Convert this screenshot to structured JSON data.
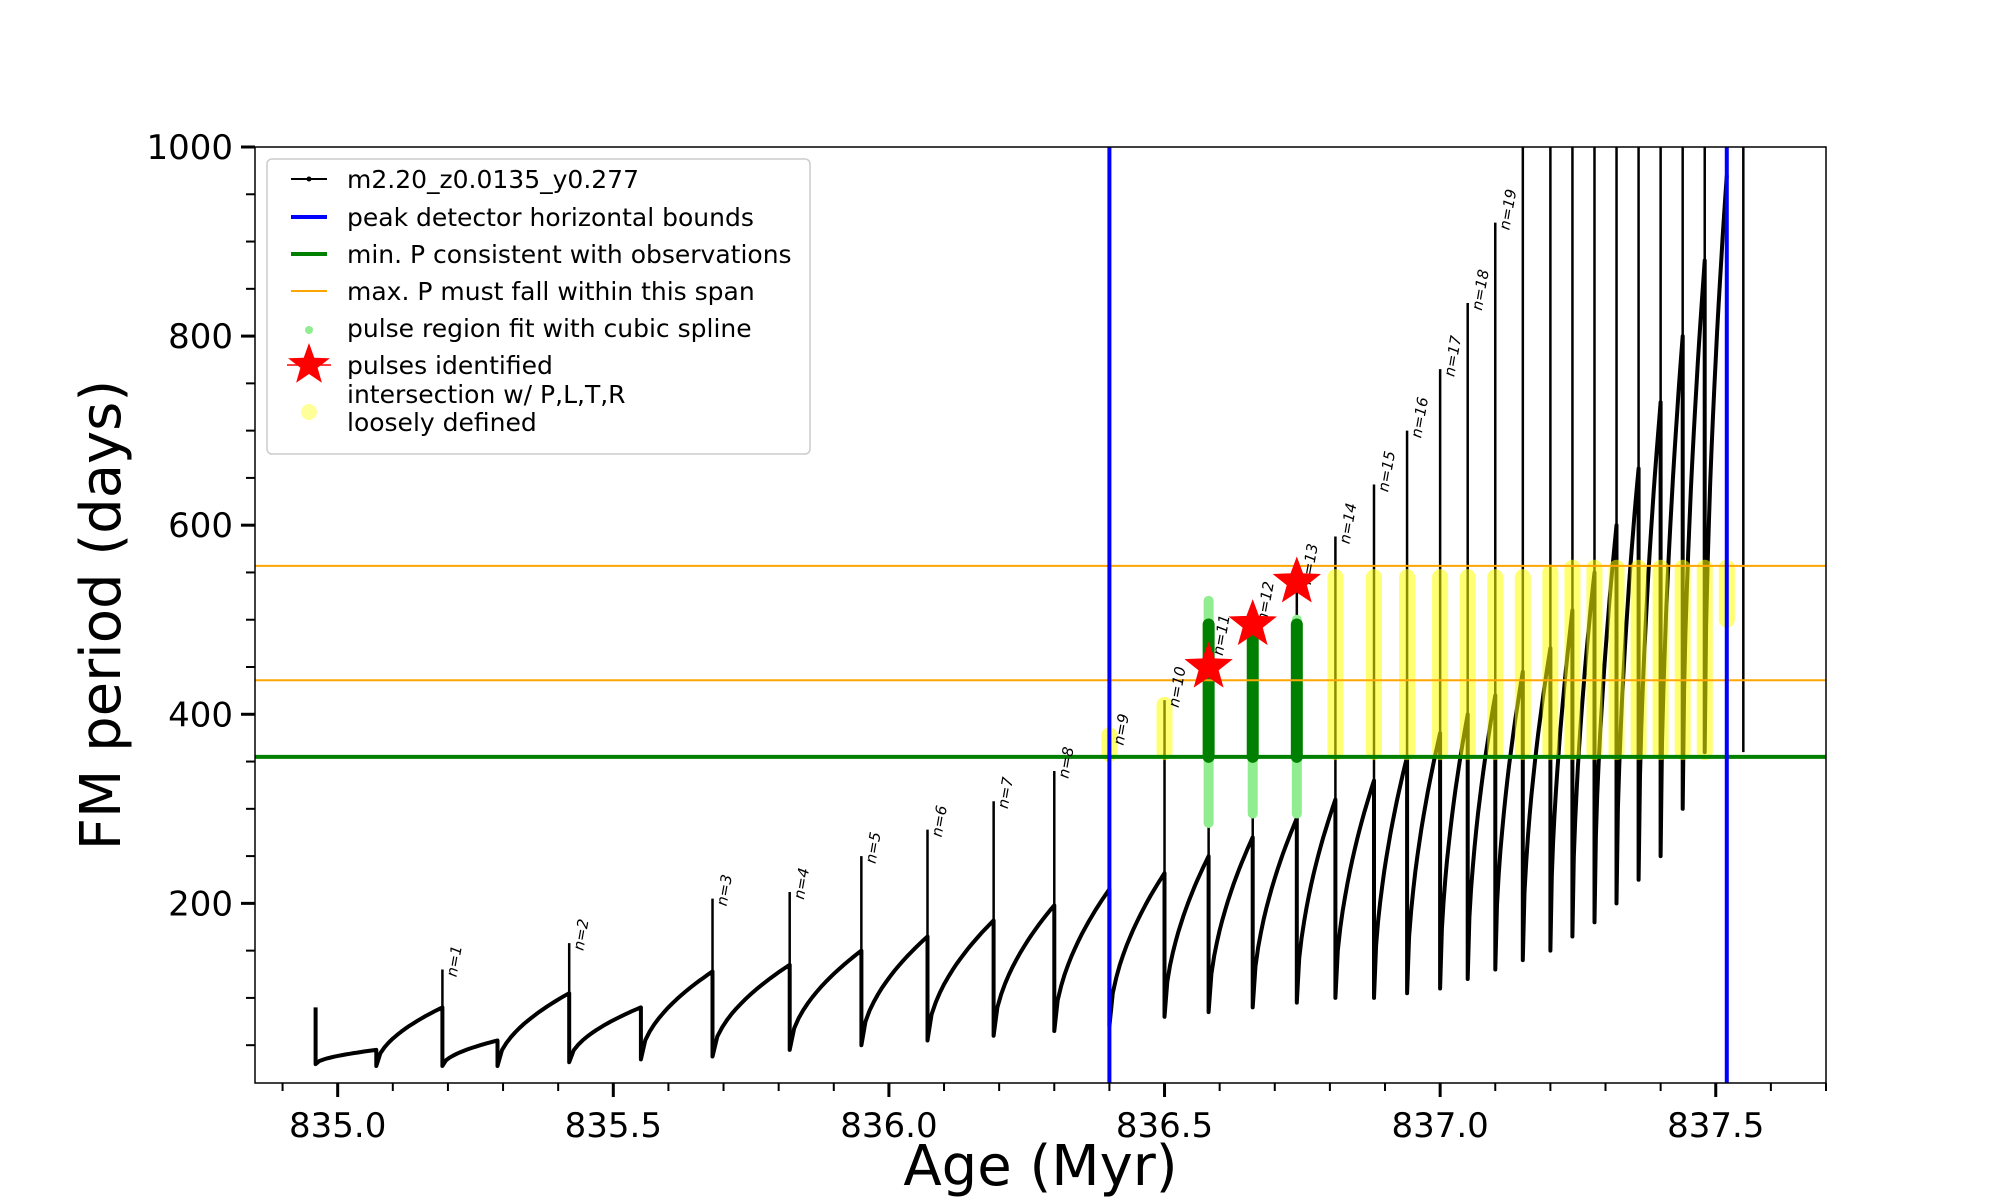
{
  "chart_data": {
    "type": "line",
    "title": "",
    "xlabel": "Age (Myr)",
    "ylabel": "FM period (days)",
    "xlim": [
      834.85,
      837.7
    ],
    "ylim": [
      10,
      1000
    ],
    "xticks": [
      835.0,
      835.5,
      836.0,
      836.5,
      837.0,
      837.5
    ],
    "xtick_labels": [
      "835.0",
      "835.5",
      "836.0",
      "836.5",
      "837.0",
      "837.5"
    ],
    "yticks": [
      200,
      400,
      600,
      800,
      1000
    ],
    "ytick_labels": [
      "200",
      "400",
      "600",
      "800",
      "1000"
    ],
    "grid": false,
    "legend_position": "top-left",
    "legend": [
      {
        "label": "m2.20_z0.0135_y0.277",
        "kind": "line-marker",
        "color": "#000000"
      },
      {
        "label": "peak detector horizontal bounds",
        "kind": "line",
        "color": "#0000ff"
      },
      {
        "label": "min. P consistent with observations",
        "kind": "line",
        "color": "#008000"
      },
      {
        "label": "max. P must fall within this span",
        "kind": "line",
        "color": "#ffa500"
      },
      {
        "label": "pulse region fit with cubic spline",
        "kind": "dot",
        "color": "#90ee90"
      },
      {
        "label": "pulses identified",
        "kind": "star",
        "color": "#ff0000"
      },
      {
        "label": "intersection w/ P,L,T,R",
        "label2": "loosely defined",
        "kind": "dot",
        "color": "#ffff99"
      }
    ],
    "vlines": [
      {
        "x": 836.4,
        "color": "#0000ff",
        "series": "peak detector horizontal bounds"
      },
      {
        "x": 837.52,
        "color": "#0000ff",
        "series": "peak detector horizontal bounds"
      }
    ],
    "hlines": [
      {
        "y": 355,
        "color": "#008000",
        "series": "min. P consistent with observations"
      },
      {
        "y": 436,
        "color": "#ffa500",
        "series": "max. P must fall within this span"
      },
      {
        "y": 557,
        "color": "#ffa500",
        "series": "max. P must fall within this span"
      }
    ],
    "track_start": {
      "x": 834.96,
      "y": 90
    },
    "track_segments": [
      {
        "x_start": 834.96,
        "x_end": 835.07,
        "y_start": 30,
        "y_end": 45
      },
      {
        "x_start": 835.07,
        "x_end": 835.19,
        "y_start": 28,
        "y_end": 90
      },
      {
        "x_start": 835.19,
        "x_end": 835.29,
        "y_start": 28,
        "y_end": 55
      },
      {
        "x_start": 835.29,
        "x_end": 835.42,
        "y_start": 28,
        "y_end": 105
      },
      {
        "x_start": 835.42,
        "x_end": 835.55,
        "y_start": 32,
        "y_end": 90
      },
      {
        "x_start": 835.55,
        "x_end": 835.68,
        "y_start": 35,
        "y_end": 128
      },
      {
        "x_start": 835.68,
        "x_end": 835.82,
        "y_start": 38,
        "y_end": 135
      },
      {
        "x_start": 835.82,
        "x_end": 835.95,
        "y_start": 45,
        "y_end": 150
      },
      {
        "x_start": 835.95,
        "x_end": 836.07,
        "y_start": 50,
        "y_end": 165
      },
      {
        "x_start": 836.07,
        "x_end": 836.19,
        "y_start": 55,
        "y_end": 182
      },
      {
        "x_start": 836.19,
        "x_end": 836.3,
        "y_start": 60,
        "y_end": 198
      },
      {
        "x_start": 836.3,
        "x_end": 836.4,
        "y_start": 65,
        "y_end": 215
      },
      {
        "x_start": 836.4,
        "x_end": 836.5,
        "y_start": 70,
        "y_end": 232
      },
      {
        "x_start": 836.5,
        "x_end": 836.58,
        "y_start": 80,
        "y_end": 250
      },
      {
        "x_start": 836.58,
        "x_end": 836.66,
        "y_start": 85,
        "y_end": 270
      },
      {
        "x_start": 836.66,
        "x_end": 836.74,
        "y_start": 90,
        "y_end": 290
      },
      {
        "x_start": 836.74,
        "x_end": 836.81,
        "y_start": 95,
        "y_end": 310
      },
      {
        "x_start": 836.81,
        "x_end": 836.88,
        "y_start": 100,
        "y_end": 330
      },
      {
        "x_start": 836.88,
        "x_end": 836.94,
        "y_start": 100,
        "y_end": 355
      },
      {
        "x_start": 836.94,
        "x_end": 837.0,
        "y_start": 105,
        "y_end": 380
      },
      {
        "x_start": 837.0,
        "x_end": 837.05,
        "y_start": 110,
        "y_end": 400
      },
      {
        "x_start": 837.05,
        "x_end": 837.1,
        "y_start": 120,
        "y_end": 420
      },
      {
        "x_start": 837.1,
        "x_end": 837.15,
        "y_start": 130,
        "y_end": 445
      },
      {
        "x_start": 837.15,
        "x_end": 837.2,
        "y_start": 140,
        "y_end": 470
      },
      {
        "x_start": 837.2,
        "x_end": 837.24,
        "y_start": 150,
        "y_end": 510
      },
      {
        "x_start": 837.24,
        "x_end": 837.28,
        "y_start": 165,
        "y_end": 550
      },
      {
        "x_start": 837.28,
        "x_end": 837.32,
        "y_start": 180,
        "y_end": 600
      },
      {
        "x_start": 837.32,
        "x_end": 837.36,
        "y_start": 200,
        "y_end": 660
      },
      {
        "x_start": 837.36,
        "x_end": 837.4,
        "y_start": 225,
        "y_end": 730
      },
      {
        "x_start": 837.4,
        "x_end": 837.44,
        "y_start": 250,
        "y_end": 800
      },
      {
        "x_start": 837.44,
        "x_end": 837.48,
        "y_start": 300,
        "y_end": 880
      },
      {
        "x_start": 837.48,
        "x_end": 837.52,
        "y_start": 360,
        "y_end": 970
      }
    ],
    "spikes": [
      {
        "x": 835.19,
        "y_top": 130,
        "label": "n=1"
      },
      {
        "x": 835.42,
        "y_top": 158,
        "label": "n=2"
      },
      {
        "x": 835.68,
        "y_top": 205,
        "label": "n=3"
      },
      {
        "x": 835.82,
        "y_top": 212,
        "label": "n=4"
      },
      {
        "x": 835.95,
        "y_top": 250,
        "label": "n=5"
      },
      {
        "x": 836.07,
        "y_top": 278,
        "label": "n=6"
      },
      {
        "x": 836.19,
        "y_top": 308,
        "label": "n=7"
      },
      {
        "x": 836.3,
        "y_top": 340,
        "label": "n=8"
      },
      {
        "x": 836.4,
        "y_top": 375,
        "label": "n=9"
      },
      {
        "x": 836.5,
        "y_top": 415,
        "label": "n=10"
      },
      {
        "x": 836.58,
        "y_top": 470,
        "label": "n=11"
      },
      {
        "x": 836.66,
        "y_top": 505,
        "label": "n=12"
      },
      {
        "x": 836.74,
        "y_top": 545,
        "label": "n=13"
      },
      {
        "x": 836.81,
        "y_top": 588,
        "label": "n=14"
      },
      {
        "x": 836.88,
        "y_top": 643,
        "label": "n=15"
      },
      {
        "x": 836.94,
        "y_top": 700,
        "label": "n=16"
      },
      {
        "x": 837.0,
        "y_top": 765,
        "label": "n=17"
      },
      {
        "x": 837.05,
        "y_top": 835,
        "label": "n=18"
      },
      {
        "x": 837.1,
        "y_top": 920,
        "label": "n=19"
      },
      {
        "x": 837.15,
        "y_top": 1000,
        "label": ""
      },
      {
        "x": 837.2,
        "y_top": 1000,
        "label": ""
      },
      {
        "x": 837.24,
        "y_top": 1000,
        "label": ""
      },
      {
        "x": 837.28,
        "y_top": 1000,
        "label": ""
      },
      {
        "x": 837.32,
        "y_top": 1000,
        "label": ""
      },
      {
        "x": 837.36,
        "y_top": 1000,
        "label": ""
      },
      {
        "x": 837.4,
        "y_top": 1000,
        "label": ""
      },
      {
        "x": 837.44,
        "y_top": 1000,
        "label": ""
      },
      {
        "x": 837.48,
        "y_top": 1000,
        "label": ""
      },
      {
        "x": 837.52,
        "y_top": 1000,
        "label": ""
      },
      {
        "x": 837.55,
        "y_top": 1000,
        "label": ""
      }
    ],
    "pulse_regions": [
      {
        "x": 836.58,
        "y_min": 285,
        "y_max": 520
      },
      {
        "x": 836.66,
        "y_min": 295,
        "y_max": 500
      },
      {
        "x": 836.74,
        "y_min": 295,
        "y_max": 500
      }
    ],
    "pulses_identified": [
      {
        "x": 836.58,
        "y": 450
      },
      {
        "x": 836.66,
        "y": 495
      },
      {
        "x": 836.74,
        "y": 540
      }
    ],
    "intersection_regions": [
      {
        "x": 836.4,
        "y_min": 358,
        "y_max": 378
      },
      {
        "x": 836.5,
        "y_min": 360,
        "y_max": 410
      },
      {
        "x": 836.81,
        "y_min": 360,
        "y_max": 545
      },
      {
        "x": 836.88,
        "y_min": 360,
        "y_max": 545
      },
      {
        "x": 836.94,
        "y_min": 360,
        "y_max": 545
      },
      {
        "x": 837.0,
        "y_min": 360,
        "y_max": 545
      },
      {
        "x": 837.05,
        "y_min": 360,
        "y_max": 545
      },
      {
        "x": 837.1,
        "y_min": 360,
        "y_max": 545
      },
      {
        "x": 837.15,
        "y_min": 360,
        "y_max": 545
      },
      {
        "x": 837.2,
        "y_min": 360,
        "y_max": 550
      },
      {
        "x": 837.24,
        "y_min": 360,
        "y_max": 555
      },
      {
        "x": 837.28,
        "y_min": 360,
        "y_max": 555
      },
      {
        "x": 837.32,
        "y_min": 360,
        "y_max": 555
      },
      {
        "x": 837.36,
        "y_min": 360,
        "y_max": 555
      },
      {
        "x": 837.4,
        "y_min": 360,
        "y_max": 555
      },
      {
        "x": 837.44,
        "y_min": 360,
        "y_max": 555
      },
      {
        "x": 837.48,
        "y_min": 360,
        "y_max": 555
      },
      {
        "x": 837.52,
        "y_min": 500,
        "y_max": 555
      }
    ]
  }
}
